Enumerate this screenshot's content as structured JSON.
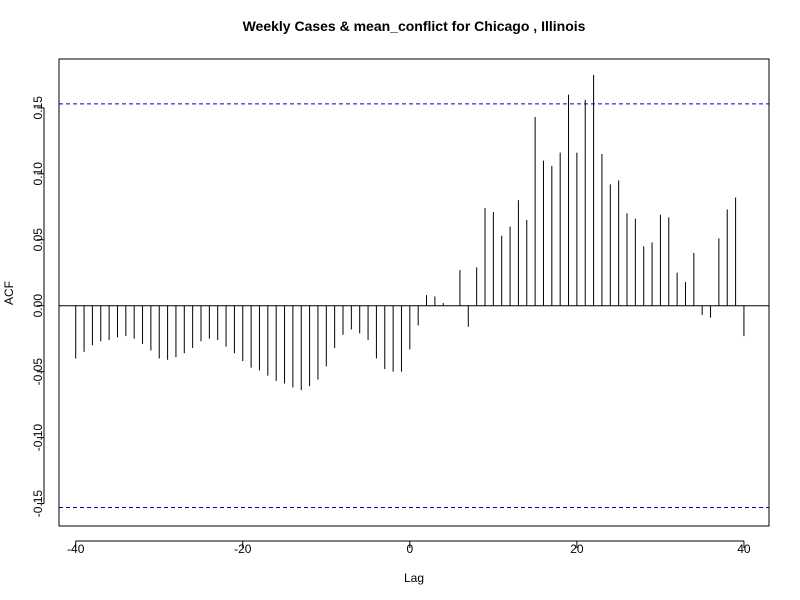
{
  "chart_data": {
    "type": "bar",
    "title": "Weekly Cases & mean_conflict for Chicago , Illinois",
    "xlabel": "Lag",
    "ylabel": "ACF",
    "xlim": [
      -42,
      43
    ],
    "ylim": [
      -0.167,
      0.187
    ],
    "xticks": [
      -40,
      -20,
      0,
      20,
      40
    ],
    "yticks": [
      -0.15,
      -0.1,
      -0.05,
      0.0,
      0.05,
      0.1,
      0.15
    ],
    "ytick_labels": [
      "-0.15",
      "-0.10",
      "-0.05",
      "0.00",
      "0.05",
      "0.10",
      "0.15"
    ],
    "conf_limit": 0.153,
    "conf_color": "#0000cc",
    "lags": [
      -40,
      -39,
      -38,
      -37,
      -36,
      -35,
      -34,
      -33,
      -32,
      -31,
      -30,
      -29,
      -28,
      -27,
      -26,
      -25,
      -24,
      -23,
      -22,
      -21,
      -20,
      -19,
      -18,
      -17,
      -16,
      -15,
      -14,
      -13,
      -12,
      -11,
      -10,
      -9,
      -8,
      -7,
      -6,
      -5,
      -4,
      -3,
      -2,
      -1,
      0,
      1,
      2,
      3,
      4,
      5,
      6,
      7,
      8,
      9,
      10,
      11,
      12,
      13,
      14,
      15,
      16,
      17,
      18,
      19,
      20,
      21,
      22,
      23,
      24,
      25,
      26,
      27,
      28,
      29,
      30,
      31,
      32,
      33,
      34,
      35,
      36,
      37,
      38,
      39,
      40
    ],
    "values": [
      -0.04,
      -0.035,
      -0.03,
      -0.027,
      -0.026,
      -0.024,
      -0.023,
      -0.025,
      -0.029,
      -0.034,
      -0.04,
      -0.041,
      -0.039,
      -0.036,
      -0.032,
      -0.027,
      -0.025,
      -0.026,
      -0.031,
      -0.036,
      -0.042,
      -0.047,
      -0.049,
      -0.053,
      -0.057,
      -0.059,
      -0.062,
      -0.064,
      -0.061,
      -0.056,
      -0.046,
      -0.032,
      -0.022,
      -0.018,
      -0.021,
      -0.026,
      -0.04,
      -0.048,
      -0.05,
      -0.05,
      -0.033,
      -0.015,
      0.008,
      0.007,
      0.002,
      0.0,
      0.027,
      -0.016,
      0.029,
      0.074,
      0.071,
      0.053,
      0.06,
      0.08,
      0.065,
      0.143,
      0.11,
      0.106,
      0.116,
      0.16,
      0.116,
      0.156,
      0.175,
      0.115,
      0.092,
      0.095,
      0.07,
      0.066,
      0.045,
      0.048,
      0.069,
      0.067,
      0.025,
      0.018,
      0.04,
      -0.007,
      -0.009,
      0.051,
      0.073,
      0.082,
      -0.023
    ]
  }
}
